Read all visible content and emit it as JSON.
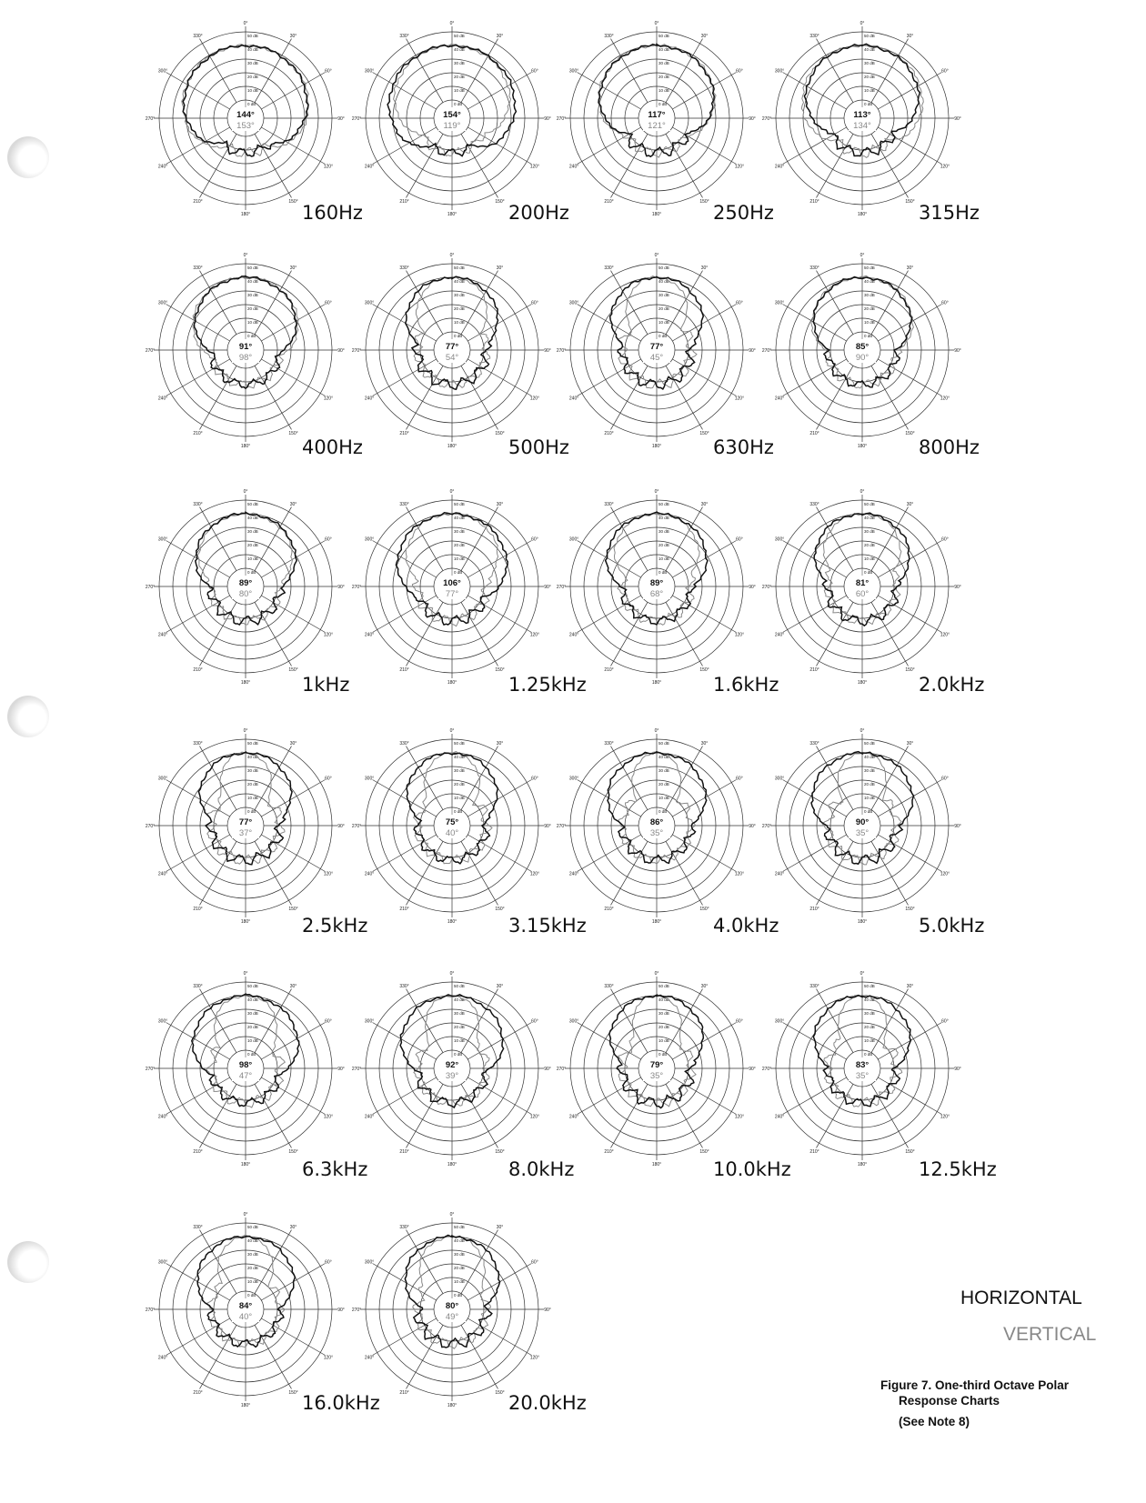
{
  "legend": {
    "horizontal_label": "HORIZONTAL",
    "vertical_label": "VERTICAL",
    "horizontal_color": "#111111",
    "vertical_color": "#888888"
  },
  "caption": {
    "line1": "Figure 7. One-third Octave Polar",
    "line2": "Response Charts",
    "line3": "(See Note 8)"
  },
  "axis": {
    "radial_ticks": [
      "0 dB",
      "10 dB",
      "20 dB",
      "30 dB",
      "40 dB",
      "50 dB"
    ],
    "angle_ticks": [
      "0°",
      "30°",
      "60°",
      "90°",
      "120°",
      "150°",
      "180°",
      "210°",
      "240°",
      "270°",
      "300°",
      "330°"
    ]
  },
  "chart_data": [
    {
      "type": "polar",
      "title": "160Hz",
      "horizontal_beamwidth": "144°",
      "vertical_beamwidth": "153°",
      "h": 144,
      "v": 153
    },
    {
      "type": "polar",
      "title": "200Hz",
      "horizontal_beamwidth": "154°",
      "vertical_beamwidth": "119°",
      "h": 154,
      "v": 119
    },
    {
      "type": "polar",
      "title": "250Hz",
      "horizontal_beamwidth": "117°",
      "vertical_beamwidth": "121°",
      "h": 117,
      "v": 121
    },
    {
      "type": "polar",
      "title": "315Hz",
      "horizontal_beamwidth": "113°",
      "vertical_beamwidth": "134°",
      "h": 113,
      "v": 134
    },
    {
      "type": "polar",
      "title": "400Hz",
      "horizontal_beamwidth": "91°",
      "vertical_beamwidth": "98°",
      "h": 91,
      "v": 98
    },
    {
      "type": "polar",
      "title": "500Hz",
      "horizontal_beamwidth": "77°",
      "vertical_beamwidth": "54°",
      "h": 77,
      "v": 54
    },
    {
      "type": "polar",
      "title": "630Hz",
      "horizontal_beamwidth": "77°",
      "vertical_beamwidth": "45°",
      "h": 77,
      "v": 45
    },
    {
      "type": "polar",
      "title": "800Hz",
      "horizontal_beamwidth": "85°",
      "vertical_beamwidth": "90°",
      "h": 85,
      "v": 90
    },
    {
      "type": "polar",
      "title": "1kHz",
      "horizontal_beamwidth": "89°",
      "vertical_beamwidth": "80°",
      "h": 89,
      "v": 80
    },
    {
      "type": "polar",
      "title": "1.25kHz",
      "horizontal_beamwidth": "106°",
      "vertical_beamwidth": "77°",
      "h": 106,
      "v": 77
    },
    {
      "type": "polar",
      "title": "1.6kHz",
      "horizontal_beamwidth": "89°",
      "vertical_beamwidth": "68°",
      "h": 89,
      "v": 68
    },
    {
      "type": "polar",
      "title": "2.0kHz",
      "horizontal_beamwidth": "81°",
      "vertical_beamwidth": "60°",
      "h": 81,
      "v": 60
    },
    {
      "type": "polar",
      "title": "2.5kHz",
      "horizontal_beamwidth": "77°",
      "vertical_beamwidth": "37°",
      "h": 77,
      "v": 37
    },
    {
      "type": "polar",
      "title": "3.15kHz",
      "horizontal_beamwidth": "75°",
      "vertical_beamwidth": "40°",
      "h": 75,
      "v": 40
    },
    {
      "type": "polar",
      "title": "4.0kHz",
      "horizontal_beamwidth": "86°",
      "vertical_beamwidth": "35°",
      "h": 86,
      "v": 35
    },
    {
      "type": "polar",
      "title": "5.0kHz",
      "horizontal_beamwidth": "90°",
      "vertical_beamwidth": "35°",
      "h": 90,
      "v": 35
    },
    {
      "type": "polar",
      "title": "6.3kHz",
      "horizontal_beamwidth": "98°",
      "vertical_beamwidth": "47°",
      "h": 98,
      "v": 47
    },
    {
      "type": "polar",
      "title": "8.0kHz",
      "horizontal_beamwidth": "92°",
      "vertical_beamwidth": "39°",
      "h": 92,
      "v": 39
    },
    {
      "type": "polar",
      "title": "10.0kHz",
      "horizontal_beamwidth": "79°",
      "vertical_beamwidth": "35°",
      "h": 79,
      "v": 35
    },
    {
      "type": "polar",
      "title": "12.5kHz",
      "horizontal_beamwidth": "83°",
      "vertical_beamwidth": "35°",
      "h": 83,
      "v": 35
    },
    {
      "type": "polar",
      "title": "16.0kHz",
      "horizontal_beamwidth": "84°",
      "vertical_beamwidth": "40°",
      "h": 84,
      "v": 40
    },
    {
      "type": "polar",
      "title": "20.0kHz",
      "horizontal_beamwidth": "80°",
      "vertical_beamwidth": "49°",
      "h": 80,
      "v": 49
    }
  ]
}
